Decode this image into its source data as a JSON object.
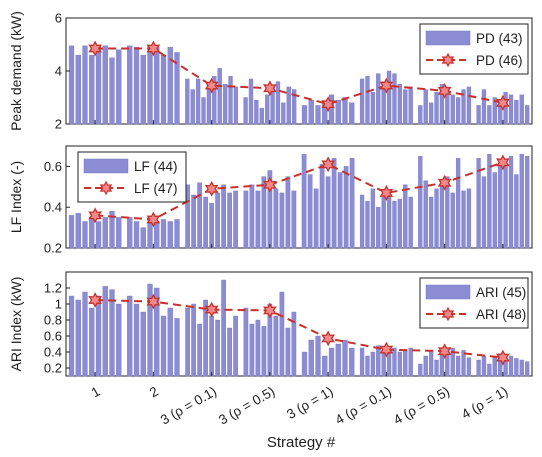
{
  "chart_data": {
    "type": "bar",
    "xlabel": "Strategy #",
    "categories": [
      "1",
      "2",
      "3 (ρ = 0.1)",
      "3 (ρ = 0.5)",
      "3 (ρ = 1)",
      "4 (ρ = 0.1)",
      "4 (ρ = 0.5)",
      "4 (ρ = 1)"
    ],
    "colors": {
      "bar": "#8c8cd4",
      "bar_edge": "#7a7ac4",
      "line": "#c8302c",
      "marker_fill": "#f08a8a",
      "marker_edge": "#c8302c"
    },
    "panels": [
      {
        "ylabel": "Peak demand (kW)",
        "ylim": [
          2,
          6
        ],
        "yticks": [
          2,
          4,
          6
        ],
        "legend": [
          "PD (43)",
          "PD (46)"
        ],
        "legend_position": "top-right",
        "bars": [
          [
            4.95,
            4.6,
            4.95,
            4.6,
            4.95,
            4.95,
            4.5,
            4.8
          ],
          [
            4.95,
            4.9,
            4.6,
            4.95,
            4.9,
            4.6,
            4.9,
            4.7
          ],
          [
            3.7,
            3.3,
            3.7,
            3.0,
            3.5,
            3.8,
            4.1,
            3.5,
            3.8,
            3.4
          ],
          [
            3.0,
            3.7,
            2.9,
            2.6,
            3.1,
            3.4,
            3.6,
            2.8,
            3.4,
            3.3
          ],
          [
            2.7,
            2.9,
            2.7,
            2.8,
            3.1,
            2.9,
            3.0,
            2.8
          ],
          [
            3.7,
            3.8,
            3.2,
            3.9,
            3.6,
            4.0,
            3.9,
            3.5,
            3.3,
            3.4
          ],
          [
            2.7,
            3.3,
            2.8,
            3.2,
            3.5,
            3.4,
            3.1,
            3.0,
            3.3,
            3.4
          ],
          [
            2.7,
            3.3,
            2.7,
            3.0,
            2.9,
            3.2,
            3.1,
            2.9,
            3.1,
            2.7
          ]
        ],
        "line": [
          4.85,
          4.85,
          3.45,
          3.35,
          2.75,
          3.45,
          3.25,
          2.8
        ]
      },
      {
        "ylabel": "LF Index (-)",
        "ylim": [
          0.2,
          0.7
        ],
        "yticks": [
          0.2,
          0.4,
          0.6
        ],
        "legend": [
          "LF (44)",
          "LF (47)"
        ],
        "legend_position": "top-left",
        "bars": [
          [
            0.36,
            0.37,
            0.33,
            0.35,
            0.33,
            0.35,
            0.38,
            0.35
          ],
          [
            0.35,
            0.33,
            0.3,
            0.35,
            0.33,
            0.34,
            0.33,
            0.34
          ],
          [
            0.51,
            0.46,
            0.52,
            0.45,
            0.42,
            0.47,
            0.51,
            0.47,
            0.48
          ],
          [
            0.48,
            0.51,
            0.48,
            0.55,
            0.58,
            0.49,
            0.47,
            0.55,
            0.48
          ],
          [
            0.66,
            0.56,
            0.49,
            0.61,
            0.55,
            0.64,
            0.57,
            0.6,
            0.64
          ],
          [
            0.46,
            0.43,
            0.49,
            0.4,
            0.45,
            0.47,
            0.43,
            0.44,
            0.51,
            0.45
          ],
          [
            0.65,
            0.53,
            0.45,
            0.49,
            0.52,
            0.55,
            0.47,
            0.64,
            0.48,
            0.49
          ],
          [
            0.64,
            0.55,
            0.66,
            0.57,
            0.61,
            0.6,
            0.65,
            0.56,
            0.66,
            0.65
          ]
        ],
        "line": [
          0.36,
          0.34,
          0.49,
          0.51,
          0.61,
          0.47,
          0.52,
          0.62
        ]
      },
      {
        "ylabel": "ARI Index (kW)",
        "ylim": [
          0.1,
          1.4
        ],
        "yticks": [
          0.2,
          0.4,
          0.6,
          0.8,
          1,
          1.2
        ],
        "legend": [
          "ARI (45)",
          "ARI (48)"
        ],
        "legend_position": "top-right",
        "bars": [
          [
            1.1,
            1.05,
            1.15,
            0.95,
            1.1,
            1.22,
            1.18,
            1.0
          ],
          [
            1.1,
            1.0,
            0.9,
            1.25,
            1.2,
            0.85,
            0.95,
            0.82
          ],
          [
            0.95,
            1.0,
            0.75,
            1.05,
            0.85,
            0.8,
            1.3,
            0.7,
            0.85
          ],
          [
            0.95,
            0.75,
            0.8,
            0.72,
            1.0,
            0.85,
            1.15,
            0.7,
            0.9
          ],
          [
            0.4,
            0.55,
            0.6,
            0.35,
            0.45,
            0.5,
            0.55,
            0.45
          ],
          [
            0.45,
            0.35,
            0.4,
            0.48,
            0.42,
            0.38,
            0.45,
            0.4,
            0.43,
            0.45
          ],
          [
            0.25,
            0.35,
            0.42,
            0.3,
            0.4,
            0.38,
            0.45,
            0.35,
            0.42,
            0.33
          ],
          [
            0.3,
            0.35,
            0.25,
            0.33,
            0.38,
            0.3,
            0.35,
            0.32,
            0.3,
            0.28
          ]
        ],
        "line": [
          1.05,
          1.03,
          0.93,
          0.92,
          0.57,
          0.43,
          0.41,
          0.33
        ]
      }
    ]
  }
}
